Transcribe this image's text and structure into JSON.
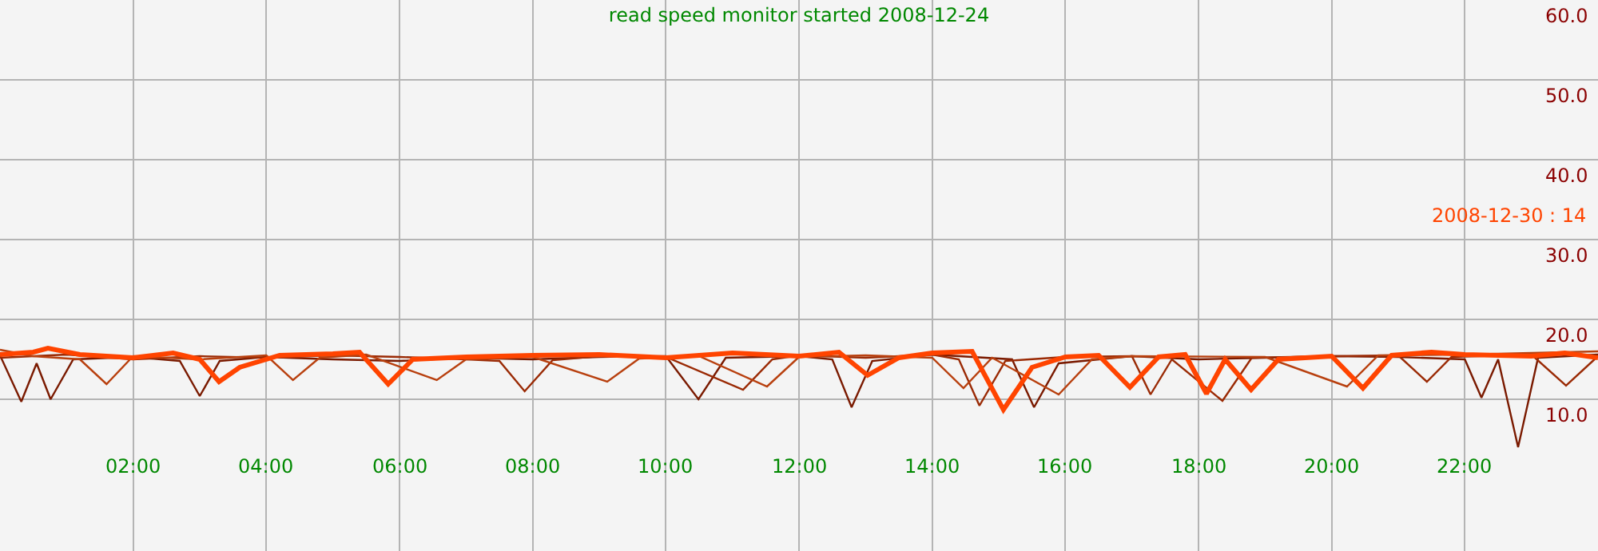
{
  "chart_data": {
    "type": "line",
    "title": "read speed monitor started 2008-12-24",
    "annotations": [
      "2008-12-30 : 14"
    ],
    "xlim": [
      0,
      24
    ],
    "xticks": [
      {
        "value": 2,
        "label": "02:00"
      },
      {
        "value": 4,
        "label": "04:00"
      },
      {
        "value": 6,
        "label": "06:00"
      },
      {
        "value": 8,
        "label": "08:00"
      },
      {
        "value": 10,
        "label": "10:00"
      },
      {
        "value": 12,
        "label": "12:00"
      },
      {
        "value": 14,
        "label": "14:00"
      },
      {
        "value": 16,
        "label": "16:00"
      },
      {
        "value": 18,
        "label": "18:00"
      },
      {
        "value": 20,
        "label": "20:00"
      },
      {
        "value": 22,
        "label": "22:00"
      }
    ],
    "ylim": [
      -9,
      60
    ],
    "yticks": [
      {
        "value": 10,
        "label": "10.0"
      },
      {
        "value": 20,
        "label": "20.0"
      },
      {
        "value": 30,
        "label": "30.0"
      },
      {
        "value": 40,
        "label": "40.0"
      },
      {
        "value": 50,
        "label": "50.0"
      },
      {
        "value": 60,
        "label": "60.0"
      }
    ],
    "grid": true,
    "marker": "none",
    "line_style": "solid",
    "series": [
      {
        "color": "#7a1a00",
        "x": [
          0,
          0.32,
          0.55,
          0.76,
          1.1,
          2,
          2.7,
          3.0,
          3.3,
          4,
          5,
          6,
          7,
          8,
          9,
          10,
          10.49,
          10.9,
          12,
          12.5,
          12.79,
          13.1,
          14,
          15.2,
          15.53,
          15.9,
          17,
          18,
          19,
          20,
          21,
          22,
          22.25,
          22.5,
          22.8,
          23.1,
          24
        ],
        "values": [
          15.5,
          9.7,
          14.5,
          10.0,
          15.0,
          15.3,
          14.8,
          10.4,
          14.8,
          15.3,
          15.0,
          14.8,
          15.2,
          15.0,
          15.3,
          15.4,
          10.0,
          15.2,
          15.4,
          15.0,
          9.0,
          14.8,
          15.6,
          15.0,
          9.0,
          14.5,
          15.4,
          15.0,
          15.2,
          15.4,
          15.3,
          15.0,
          10.2,
          15.0,
          4.0,
          15.2,
          15.6
        ]
      },
      {
        "color": "#9a2a05",
        "x": [
          0,
          1,
          2,
          3,
          4,
          5,
          6,
          7,
          7.5,
          7.88,
          8.3,
          9,
          10,
          11.16,
          11.6,
          12,
          13,
          14,
          14.4,
          14.71,
          15.1,
          16,
          17,
          17.28,
          17.6,
          18.36,
          18.8,
          20,
          21,
          21.43,
          21.8,
          23,
          23.52,
          24
        ],
        "values": [
          15.2,
          15.6,
          15.0,
          15.4,
          15.2,
          15.5,
          15.3,
          15.0,
          14.8,
          11.0,
          14.9,
          15.4,
          15.3,
          11.2,
          15.0,
          15.5,
          15.2,
          15.6,
          15.0,
          9.2,
          14.8,
          15.3,
          15.4,
          10.6,
          15.0,
          9.8,
          15.2,
          15.4,
          15.5,
          12.2,
          15.3,
          15.6,
          11.7,
          15.4
        ]
      },
      {
        "color": "#b8400f",
        "x": [
          0,
          0.5,
          1.2,
          1.6,
          2,
          3,
          4,
          4.4,
          4.8,
          5.5,
          6.56,
          7,
          8,
          9.12,
          9.6,
          10.5,
          11.52,
          12,
          13,
          14,
          14.47,
          14.9,
          15.9,
          16.4,
          17,
          19,
          20.23,
          20.7,
          22,
          23,
          24
        ],
        "values": [
          16.2,
          15.4,
          15.0,
          11.9,
          15.4,
          15.0,
          15.5,
          12.4,
          15.2,
          15.6,
          12.4,
          15.0,
          15.3,
          12.2,
          15.1,
          15.4,
          11.6,
          15.3,
          15.5,
          15.2,
          11.4,
          15.2,
          10.6,
          15.0,
          15.4,
          15.3,
          11.6,
          15.5,
          15.6,
          15.8,
          16.0
        ]
      },
      {
        "color": "#ff4400",
        "x": [
          0,
          0.5,
          0.72,
          1.2,
          2,
          2.6,
          3.0,
          3.29,
          3.6,
          4.2,
          5,
          5.4,
          5.83,
          6.2,
          7,
          8,
          9,
          10,
          11,
          12,
          12.6,
          13.03,
          13.5,
          14,
          14.6,
          15.07,
          15.5,
          16,
          16.5,
          16.97,
          17.4,
          17.8,
          18.12,
          18.4,
          18.79,
          19.2,
          20,
          20.47,
          20.9,
          21.5,
          22,
          23,
          23.5,
          24
        ],
        "values": [
          15.6,
          15.9,
          16.4,
          15.6,
          15.2,
          15.8,
          15.0,
          12.2,
          14.0,
          15.5,
          15.7,
          15.9,
          11.9,
          15.0,
          15.3,
          15.5,
          15.6,
          15.2,
          15.8,
          15.4,
          15.9,
          13.0,
          15.2,
          15.8,
          16.0,
          8.7,
          14.0,
          15.3,
          15.5,
          11.5,
          15.3,
          15.6,
          10.7,
          15.0,
          11.2,
          15.0,
          15.4,
          11.4,
          15.5,
          15.9,
          15.6,
          15.4,
          15.8,
          15.2
        ]
      }
    ]
  }
}
